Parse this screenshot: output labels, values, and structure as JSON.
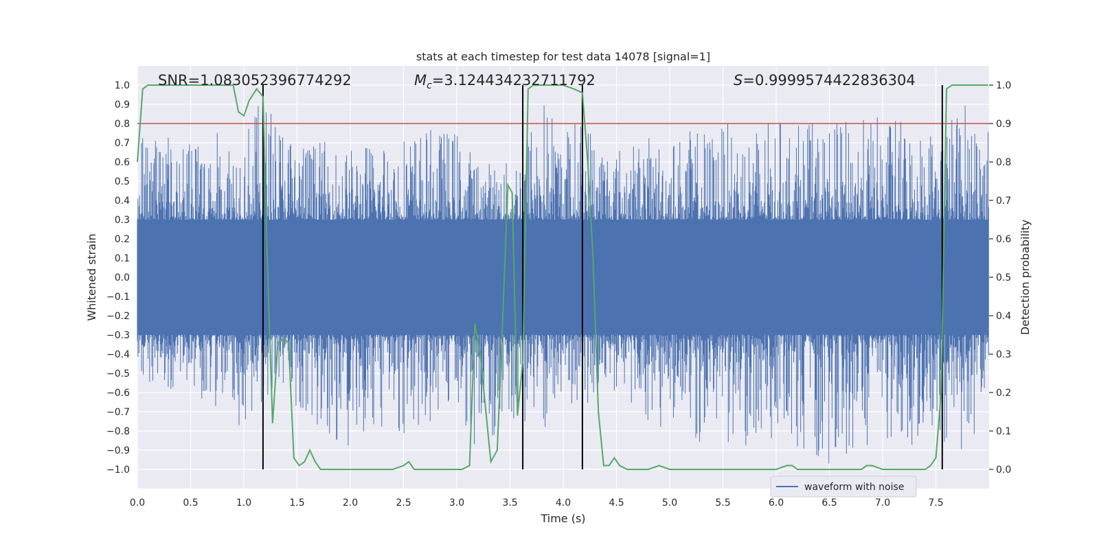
{
  "chart_data": {
    "type": "line",
    "title": "stats at each timestep for test data 14078 [signal=1]",
    "xlabel": "Time (s)",
    "ylabel": "Whitened strain",
    "y2label": "Detection probability",
    "xlim": [
      0.0,
      8.0
    ],
    "ylim": [
      -1.1,
      1.1
    ],
    "y2lim": [
      -0.05,
      1.05
    ],
    "xticks": [
      0.0,
      0.5,
      1.0,
      1.5,
      2.0,
      2.5,
      3.0,
      3.5,
      4.0,
      4.5,
      5.0,
      5.5,
      6.0,
      6.5,
      7.0,
      7.5
    ],
    "xtick_labels": [
      "0.0",
      "0.5",
      "1.0",
      "1.5",
      "2.0",
      "2.5",
      "3.0",
      "3.5",
      "4.0",
      "4.5",
      "5.0",
      "5.5",
      "6.0",
      "6.5",
      "7.0",
      "7.5"
    ],
    "yticks": [
      1.0,
      0.9,
      0.8,
      0.7,
      0.6,
      0.5,
      0.4,
      0.3,
      0.2,
      0.1,
      0.0,
      -0.1,
      -0.2,
      -0.3,
      -0.4,
      -0.5,
      -0.6,
      -0.7,
      -0.8,
      -0.9,
      -1.0
    ],
    "ytick_labels": [
      "1.0",
      "0.9",
      "0.8",
      "0.7",
      "0.6",
      "0.5",
      "0.4",
      "0.3",
      "0.2",
      "0.1",
      "0.0",
      "−0.1",
      "−0.2",
      "−0.3",
      "−0.4",
      "−0.5",
      "−0.6",
      "−0.7",
      "−0.8",
      "−0.9",
      "−1.0"
    ],
    "y2ticks": [
      1.0,
      0.9,
      0.8,
      0.7,
      0.6,
      0.5,
      0.4,
      0.3,
      0.2,
      0.1,
      0.0
    ],
    "y2tick_labels": [
      "1.0",
      "0.9",
      "0.8",
      "0.7",
      "0.6",
      "0.5",
      "0.4",
      "0.3",
      "0.2",
      "0.1",
      "0.0"
    ],
    "annotations": {
      "snr": "SNR=1.083052396774292",
      "mc_symbol": "M",
      "mc_sub": "c",
      "mc_value": "=3.124434232711792",
      "s_symbol": "S",
      "s_value": "=0.9999574422836304"
    },
    "legend": {
      "label": "waveform with noise",
      "position": "lower-right"
    },
    "threshold": {
      "y2_value": 0.9,
      "color": "#c44e52"
    },
    "vertical_lines": [
      1.18,
      3.62,
      4.18,
      7.56
    ],
    "vertical_line_range_y2": [
      0.0,
      1.0
    ],
    "waveform": {
      "name": "waveform with noise",
      "color": "#4c72b0",
      "sample_count": 1600,
      "dt": 0.005,
      "core_amplitude": 0.3,
      "envelope_x": [
        0.0,
        0.5,
        1.0,
        1.2,
        1.5,
        2.0,
        2.5,
        3.0,
        3.2,
        3.5,
        3.8,
        4.0,
        4.2,
        4.5,
        5.0,
        5.5,
        6.0,
        6.5,
        7.0,
        7.5,
        7.8,
        7.99
      ],
      "envelope_max": [
        0.75,
        0.72,
        0.8,
        0.95,
        0.75,
        0.68,
        0.78,
        0.78,
        0.62,
        0.6,
        0.98,
        0.8,
        0.86,
        0.7,
        0.75,
        0.8,
        0.82,
        0.8,
        0.85,
        0.8,
        0.95,
        0.85
      ],
      "envelope_min": [
        -0.55,
        -0.6,
        -0.8,
        -0.65,
        -0.7,
        -0.9,
        -0.85,
        -0.65,
        -0.98,
        -0.75,
        -0.9,
        -0.6,
        -0.75,
        -0.6,
        -0.85,
        -0.9,
        -0.85,
        -0.98,
        -0.85,
        -0.9,
        -0.92,
        -0.65
      ]
    },
    "detection_probability": {
      "name": "detection probability",
      "color": "#55a868",
      "x": [
        0.0,
        0.05,
        0.1,
        0.2,
        0.3,
        0.5,
        0.7,
        0.9,
        0.95,
        1.0,
        1.05,
        1.12,
        1.18,
        1.22,
        1.27,
        1.32,
        1.37,
        1.42,
        1.47,
        1.52,
        1.57,
        1.62,
        1.67,
        1.72,
        1.78,
        1.85,
        1.92,
        2.0,
        2.1,
        2.2,
        2.3,
        2.4,
        2.5,
        2.55,
        2.6,
        2.7,
        2.8,
        2.9,
        3.0,
        3.05,
        3.12,
        3.17,
        3.22,
        3.27,
        3.32,
        3.38,
        3.43,
        3.48,
        3.52,
        3.57,
        3.62,
        3.67,
        3.72,
        3.8,
        3.9,
        4.0,
        4.1,
        4.18,
        4.23,
        4.28,
        4.33,
        4.38,
        4.43,
        4.48,
        4.53,
        4.6,
        4.7,
        4.8,
        4.9,
        5.0,
        5.2,
        5.5,
        5.8,
        6.0,
        6.1,
        6.15,
        6.2,
        6.3,
        6.4,
        6.5,
        6.6,
        6.7,
        6.75,
        6.8,
        6.85,
        6.9,
        7.0,
        7.2,
        7.3,
        7.4,
        7.45,
        7.5,
        7.55,
        7.6,
        7.65,
        7.7,
        7.8,
        7.9,
        7.99
      ],
      "y": [
        0.8,
        0.99,
        1.0,
        1.0,
        1.0,
        1.0,
        1.0,
        1.0,
        0.93,
        0.92,
        0.96,
        0.99,
        0.97,
        0.55,
        0.12,
        0.33,
        0.34,
        0.33,
        0.03,
        0.01,
        0.02,
        0.05,
        0.02,
        0.0,
        0.0,
        0.0,
        0.0,
        0.0,
        0.0,
        0.0,
        0.0,
        0.0,
        0.01,
        0.02,
        0.0,
        0.0,
        0.0,
        0.0,
        0.0,
        0.0,
        0.01,
        0.38,
        0.3,
        0.16,
        0.02,
        0.05,
        0.38,
        0.74,
        0.72,
        0.14,
        0.28,
        0.99,
        1.0,
        1.0,
        1.0,
        1.0,
        0.99,
        0.98,
        0.8,
        0.55,
        0.15,
        0.01,
        0.01,
        0.03,
        0.01,
        0.0,
        0.0,
        0.0,
        0.01,
        0.0,
        0.0,
        0.0,
        0.0,
        0.0,
        0.01,
        0.01,
        0.0,
        0.0,
        0.0,
        0.0,
        0.0,
        0.0,
        0.0,
        0.0,
        0.01,
        0.01,
        0.0,
        0.0,
        0.0,
        0.0,
        0.01,
        0.03,
        0.2,
        0.99,
        1.0,
        1.0,
        1.0,
        1.0,
        1.0
      ]
    }
  }
}
